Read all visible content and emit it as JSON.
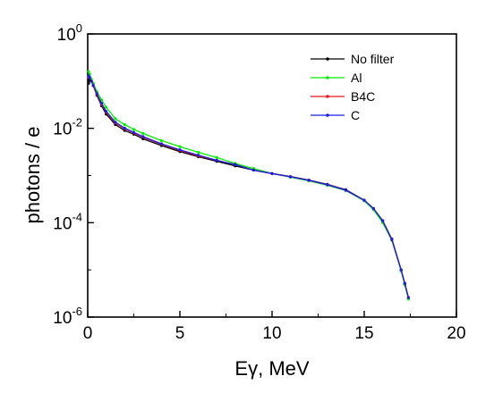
{
  "chart_data": {
    "type": "line",
    "title": "",
    "xlabel": "Eγ, MeV",
    "ylabel": "photons / e",
    "xlim": [
      0,
      20
    ],
    "ylim": [
      1e-06,
      1
    ],
    "yscale": "log",
    "grid": false,
    "legend_position": "top-right",
    "x_ticks": [
      0,
      5,
      10,
      15,
      20
    ],
    "x_tick_labels": [
      "0",
      "5",
      "10",
      "15",
      "20"
    ],
    "y_ticks": [
      1,
      0.01,
      0.0001,
      1e-06
    ],
    "y_tick_labels": [
      {
        "base": "10",
        "exp": "0"
      },
      {
        "base": "10",
        "exp": "-2"
      },
      {
        "base": "10",
        "exp": "-4"
      },
      {
        "base": "10",
        "exp": "-6"
      }
    ],
    "series": [
      {
        "name": "No filter",
        "color": "#000000",
        "x": [
          0.05,
          0.1,
          0.2,
          0.3,
          0.5,
          0.75,
          1.0,
          1.5,
          2.0,
          2.5,
          3.0,
          4.0,
          5.0,
          6.0,
          7.0,
          8.0,
          9.0,
          10.0,
          11.0,
          12.0,
          13.0,
          14.0,
          15.0,
          15.5,
          16.0,
          16.5,
          17.0,
          17.2,
          17.4
        ],
        "y": [
          0.09,
          0.11,
          0.1,
          0.08,
          0.05,
          0.03,
          0.02,
          0.012,
          0.009,
          0.0075,
          0.006,
          0.0043,
          0.0032,
          0.0025,
          0.002,
          0.0016,
          0.0013,
          0.0011,
          0.00095,
          0.0008,
          0.00065,
          0.0005,
          0.0003,
          0.0002,
          0.00011,
          4.5e-05,
          1e-05,
          5e-06,
          2.5e-06
        ]
      },
      {
        "name": "Al",
        "color": "#00ee00",
        "x": [
          0.05,
          0.1,
          0.2,
          0.3,
          0.5,
          0.75,
          1.0,
          1.5,
          2.0,
          2.5,
          3.0,
          4.0,
          5.0,
          6.0,
          7.0,
          8.0,
          9.0,
          10.0,
          11.0,
          12.0,
          13.0,
          14.0,
          15.0,
          15.5,
          16.0,
          16.5,
          17.0,
          17.2,
          17.4
        ],
        "y": [
          0.16,
          0.14,
          0.11,
          0.09,
          0.06,
          0.04,
          0.028,
          0.016,
          0.012,
          0.0095,
          0.0078,
          0.0055,
          0.0041,
          0.0031,
          0.0024,
          0.0018,
          0.0014,
          0.0011,
          0.00092,
          0.00077,
          0.00062,
          0.00048,
          0.00029,
          0.00019,
          0.0001,
          4.2e-05,
          9.5e-06,
          4.8e-06,
          2.4e-06
        ]
      },
      {
        "name": "B4C",
        "color": "#e8141c",
        "x": [
          0.05,
          0.1,
          0.2,
          0.3,
          0.5,
          0.75,
          1.0,
          1.5,
          2.0,
          2.5,
          3.0,
          4.0,
          5.0,
          6.0,
          7.0,
          8.0,
          9.0,
          10.0,
          11.0,
          12.0,
          13.0,
          14.0,
          15.0,
          15.5,
          16.0,
          16.5,
          17.0,
          17.2,
          17.4
        ],
        "y": [
          0.12,
          0.12,
          0.1,
          0.08,
          0.052,
          0.032,
          0.022,
          0.013,
          0.0098,
          0.008,
          0.0065,
          0.0046,
          0.0034,
          0.0026,
          0.0021,
          0.0017,
          0.0013,
          0.0011,
          0.00094,
          0.00079,
          0.00064,
          0.00049,
          0.0003,
          0.0002,
          0.00011,
          4.4e-05,
          1e-05,
          5.2e-06,
          2.6e-06
        ]
      },
      {
        "name": "C",
        "color": "#1c1ce8",
        "x": [
          0.05,
          0.1,
          0.2,
          0.3,
          0.5,
          0.75,
          1.0,
          1.5,
          2.0,
          2.5,
          3.0,
          4.0,
          5.0,
          6.0,
          7.0,
          8.0,
          9.0,
          10.0,
          11.0,
          12.0,
          13.0,
          14.0,
          15.0,
          15.5,
          16.0,
          16.5,
          17.0,
          17.2,
          17.4
        ],
        "y": [
          0.13,
          0.12,
          0.1,
          0.082,
          0.054,
          0.034,
          0.023,
          0.0135,
          0.0101,
          0.0082,
          0.0067,
          0.0047,
          0.0035,
          0.0027,
          0.0021,
          0.0017,
          0.0013,
          0.0011,
          0.00094,
          0.00079,
          0.00064,
          0.00049,
          0.0003,
          0.0002,
          0.00011,
          4.4e-05,
          1e-05,
          5.2e-06,
          2.6e-06
        ]
      }
    ]
  }
}
